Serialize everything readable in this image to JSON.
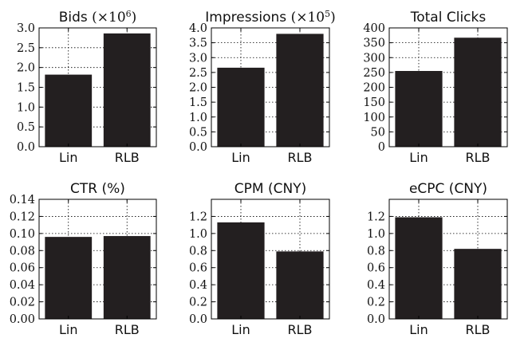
{
  "chart_data": [
    {
      "type": "bar",
      "title": "Bids",
      "title_suffix": "(×10",
      "title_exp": "6",
      "title_close": ")",
      "categories": [
        "Lin",
        "RLB"
      ],
      "values": [
        1.82,
        2.86
      ],
      "ylim": [
        0,
        3.0
      ],
      "yticks": [
        "0.0",
        "0.5",
        "1.0",
        "1.5",
        "2.0",
        "2.5",
        "3.0"
      ],
      "ytick_values": [
        0,
        0.5,
        1.0,
        1.5,
        2.0,
        2.5,
        3.0
      ],
      "grid": true
    },
    {
      "type": "bar",
      "title": "Impressions",
      "title_suffix": "(×10",
      "title_exp": "5",
      "title_close": ")",
      "categories": [
        "Lin",
        "RLB"
      ],
      "values": [
        2.66,
        3.8
      ],
      "ylim": [
        0,
        4.0
      ],
      "yticks": [
        "0.0",
        "0.5",
        "1.0",
        "1.5",
        "2.0",
        "2.5",
        "3.0",
        "3.5",
        "4.0"
      ],
      "ytick_values": [
        0,
        0.5,
        1.0,
        1.5,
        2.0,
        2.5,
        3.0,
        3.5,
        4.0
      ],
      "grid": true
    },
    {
      "type": "bar",
      "title": "Total Clicks",
      "categories": [
        "Lin",
        "RLB"
      ],
      "values": [
        255,
        367
      ],
      "ylim": [
        0,
        400
      ],
      "yticks": [
        "0",
        "50",
        "100",
        "150",
        "200",
        "250",
        "300",
        "350",
        "400"
      ],
      "ytick_values": [
        0,
        50,
        100,
        150,
        200,
        250,
        300,
        350,
        400
      ],
      "grid": true
    },
    {
      "type": "bar",
      "title": "CTR (%)",
      "categories": [
        "Lin",
        "RLB"
      ],
      "values": [
        0.096,
        0.097
      ],
      "ylim": [
        0,
        0.14
      ],
      "yticks": [
        "0.00",
        "0.02",
        "0.04",
        "0.06",
        "0.08",
        "0.10",
        "0.12",
        "0.14"
      ],
      "ytick_values": [
        0,
        0.02,
        0.04,
        0.06,
        0.08,
        0.1,
        0.12,
        0.14
      ],
      "grid": true
    },
    {
      "type": "bar",
      "title": "CPM (CNY)",
      "categories": [
        "Lin",
        "RLB"
      ],
      "values": [
        1.13,
        0.79
      ],
      "ylim": [
        0,
        1.4
      ],
      "yticks": [
        "0.0",
        "0.2",
        "0.4",
        "0.6",
        "0.8",
        "1.0",
        "1.2"
      ],
      "ytick_values": [
        0,
        0.2,
        0.4,
        0.6,
        0.8,
        1.0,
        1.2
      ],
      "grid": true
    },
    {
      "type": "bar",
      "title": "eCPC (CNY)",
      "categories": [
        "Lin",
        "RLB"
      ],
      "values": [
        1.19,
        0.82
      ],
      "ylim": [
        0,
        1.4
      ],
      "yticks": [
        "0.0",
        "0.2",
        "0.4",
        "0.6",
        "0.8",
        "1.0",
        "1.2"
      ],
      "ytick_values": [
        0,
        0.2,
        0.4,
        0.6,
        0.8,
        1.0,
        1.2
      ],
      "grid": true
    }
  ],
  "colors": {
    "bar": "#231f20",
    "frame": "#000000"
  }
}
